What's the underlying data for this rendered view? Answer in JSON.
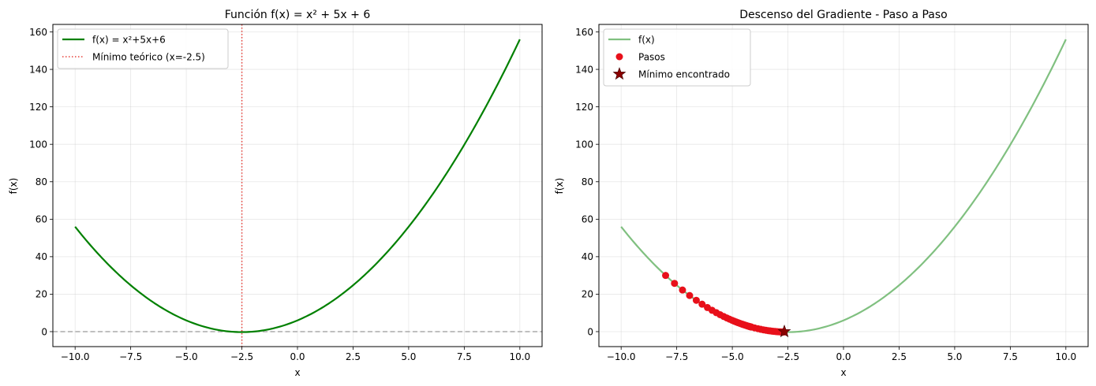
{
  "chart_data": [
    {
      "type": "line",
      "title": "Función f(x) = x² + 5x + 6",
      "xlabel": "x",
      "ylabel": "f(x)",
      "xlim": [
        -11.0,
        11.0
      ],
      "ylim": [
        -8.0,
        164.0
      ],
      "grid": true,
      "legend_position": "top-left",
      "xticks": [
        -10.0,
        -7.5,
        -5.0,
        -2.5,
        0.0,
        2.5,
        5.0,
        7.5,
        10.0
      ],
      "xtick_labels": [
        "−10.0",
        "−7.5",
        "−5.0",
        "−2.5",
        "0.0",
        "2.5",
        "5.0",
        "7.5",
        "10.0"
      ],
      "yticks": [
        0,
        20,
        40,
        60,
        80,
        100,
        120,
        140,
        160
      ],
      "ytick_labels": [
        "0",
        "20",
        "40",
        "60",
        "80",
        "100",
        "120",
        "140",
        "160"
      ],
      "function": {
        "a": 1,
        "b": 5,
        "c": 6,
        "x_range": [
          -10,
          10
        ]
      },
      "series": [
        {
          "name": "f(x) = x²+5x+6",
          "style": "solid",
          "color": "#008000"
        },
        {
          "name": "Mínimo teórico (x=-2.5)",
          "style": "dotted-vertical",
          "x": -2.5,
          "color": "#e8413a"
        }
      ],
      "reference_lines": [
        {
          "orientation": "horizontal",
          "y": 0,
          "style": "dashed",
          "color": "#aaaaaa"
        }
      ]
    },
    {
      "type": "scatter",
      "title": "Descenso del Gradiente - Paso a Paso",
      "xlabel": "x",
      "ylabel": "f(x)",
      "xlim": [
        -11.0,
        11.0
      ],
      "ylim": [
        -8.0,
        164.0
      ],
      "grid": true,
      "legend_position": "top-left",
      "xticks": [
        -10.0,
        -7.5,
        -5.0,
        -2.5,
        0.0,
        2.5,
        5.0,
        7.5,
        10.0
      ],
      "xtick_labels": [
        "−10.0",
        "−7.5",
        "−5.0",
        "−2.5",
        "0.0",
        "2.5",
        "5.0",
        "7.5",
        "10.0"
      ],
      "yticks": [
        0,
        20,
        40,
        60,
        80,
        100,
        120,
        140,
        160
      ],
      "ytick_labels": [
        "0",
        "20",
        "40",
        "60",
        "80",
        "100",
        "120",
        "140",
        "160"
      ],
      "function": {
        "a": 1,
        "b": 5,
        "c": 6,
        "x_range": [
          -10,
          10
        ]
      },
      "series": [
        {
          "name": "f(x)",
          "style": "line",
          "color": "#80c080"
        },
        {
          "name": "Pasos",
          "style": "markers",
          "color": "#e8101a",
          "x": [
            -8.0,
            -7.6,
            -7.24,
            -6.92,
            -6.62,
            -6.36,
            -6.12,
            -5.91,
            -5.72,
            -5.55,
            -5.39,
            -5.25,
            -5.13,
            -5.01,
            -4.91,
            -4.82,
            -4.74,
            -4.67,
            -4.6,
            -4.54,
            -4.49,
            -4.44,
            -4.4,
            -4.36,
            -4.32,
            -4.29,
            -4.26,
            -4.23,
            -4.21,
            -4.19,
            -4.17,
            -4.15,
            -4.14,
            -4.0,
            -3.85,
            -3.72,
            -3.6,
            -3.49,
            -3.39,
            -3.3,
            -3.22,
            -3.14,
            -3.07,
            -3.01,
            -2.95,
            -2.89,
            -2.84,
            -2.79,
            -2.75,
            -2.71,
            -2.67
          ]
        },
        {
          "name": "Mínimo encontrado",
          "style": "star",
          "color": "#8b0000",
          "x": -2.66,
          "y": 0.03
        }
      ]
    }
  ]
}
